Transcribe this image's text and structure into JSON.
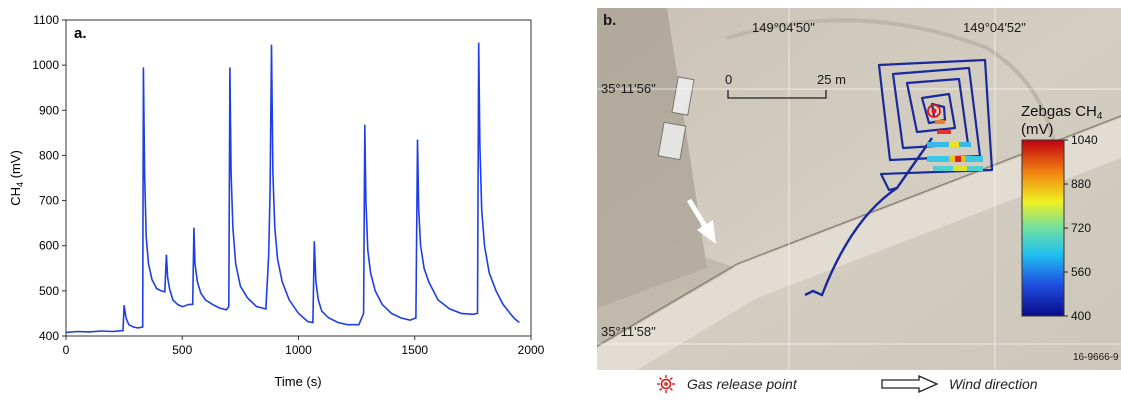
{
  "chart_data": [
    {
      "panel": "a.",
      "type": "line",
      "xlabel": "Time (s)",
      "ylabel": "CH",
      "ylabel_sub": "4",
      "ylabel_unit": " (mV)",
      "xlim": [
        0,
        2000
      ],
      "ylim": [
        400,
        1100
      ],
      "xticks": [
        0,
        500,
        1000,
        1500,
        2000
      ],
      "yticks": [
        400,
        500,
        600,
        700,
        800,
        900,
        1000,
        1100
      ],
      "line_color": "#1f3ee6",
      "x": [
        0,
        50,
        100,
        150,
        200,
        245,
        250,
        258,
        270,
        290,
        310,
        330,
        333,
        338,
        345,
        355,
        370,
        390,
        410,
        425,
        432,
        437,
        445,
        460,
        480,
        500,
        530,
        545,
        550,
        555,
        565,
        580,
        600,
        630,
        660,
        690,
        700,
        705,
        710,
        718,
        730,
        750,
        780,
        820,
        860,
        872,
        878,
        884,
        890,
        898,
        910,
        930,
        960,
        1000,
        1040,
        1062,
        1068,
        1075,
        1085,
        1100,
        1130,
        1170,
        1210,
        1260,
        1280,
        1285,
        1290,
        1298,
        1310,
        1330,
        1360,
        1400,
        1440,
        1480,
        1505,
        1512,
        1517,
        1525,
        1540,
        1560,
        1600,
        1650,
        1700,
        1750,
        1770,
        1775,
        1780,
        1788,
        1800,
        1820,
        1850,
        1880,
        1910,
        1930,
        1950
      ],
      "y": [
        408,
        410,
        409,
        411,
        410,
        412,
        468,
        440,
        425,
        420,
        418,
        420,
        995,
        760,
        620,
        560,
        525,
        505,
        500,
        498,
        580,
        530,
        505,
        480,
        470,
        465,
        470,
        470,
        640,
        560,
        520,
        495,
        480,
        470,
        462,
        458,
        465,
        995,
        760,
        640,
        560,
        510,
        485,
        465,
        460,
        580,
        725,
        1045,
        760,
        640,
        570,
        520,
        480,
        450,
        432,
        430,
        610,
        520,
        480,
        455,
        440,
        430,
        425,
        425,
        450,
        868,
        700,
        590,
        540,
        500,
        470,
        450,
        440,
        435,
        440,
        835,
        680,
        600,
        550,
        520,
        480,
        460,
        450,
        448,
        450,
        1050,
        820,
        680,
        600,
        540,
        500,
        470,
        450,
        438,
        430
      ]
    },
    {
      "panel": "b.",
      "type": "heatmap",
      "colorbar_title": "Zebgas CH",
      "colorbar_sub": "4",
      "colorbar_unit": "(mV)",
      "colorbar_ticks": [
        400,
        560,
        720,
        880,
        1040
      ],
      "colorbar_range": [
        400,
        1040
      ],
      "lon_labels": [
        "149°04'50\"",
        "149°04'52\""
      ],
      "lat_labels": [
        "35°11'56\"",
        "35°11'58\""
      ],
      "scale_labels": [
        "0",
        "25 m"
      ],
      "figure_id": "16-9666-9",
      "track_color": "#1a2a9a"
    }
  ],
  "legend": {
    "release_label": "Gas release point",
    "wind_label": "Wind direction",
    "release_color": "#e01818"
  }
}
